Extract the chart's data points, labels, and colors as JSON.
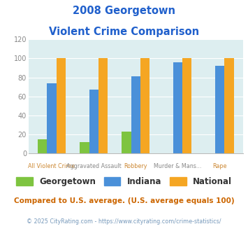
{
  "title_line1": "2008 Georgetown",
  "title_line2": "Violent Crime Comparison",
  "title_color": "#2060cc",
  "categories": [
    "All Violent Crime",
    "Aggravated Assault",
    "Robbery",
    "Murder & Mans...",
    "Rape"
  ],
  "cat_line1": [
    "",
    "Aggravated Assault",
    "",
    "Murder & Mans...",
    ""
  ],
  "cat_line2": [
    "All Violent Crime",
    "",
    "Robbery",
    "",
    "Rape"
  ],
  "series": {
    "Georgetown": [
      15,
      12,
      23,
      0,
      0
    ],
    "Indiana": [
      74,
      67,
      81,
      96,
      92
    ],
    "National": [
      100,
      100,
      100,
      100,
      100
    ]
  },
  "colors": {
    "Georgetown": "#7ec440",
    "Indiana": "#4a90d9",
    "National": "#f5a623"
  },
  "ylim": [
    0,
    120
  ],
  "yticks": [
    0,
    20,
    40,
    60,
    80,
    100,
    120
  ],
  "plot_bg": "#ddeef0",
  "fig_bg": "#ffffff",
  "grid_color": "#ffffff",
  "footnote1": "Compared to U.S. average. (U.S. average equals 100)",
  "footnote2": "© 2025 CityRating.com - https://www.cityrating.com/crime-statistics/",
  "footnote1_color": "#cc6600",
  "footnote2_color": "#7799bb",
  "bar_width": 0.22
}
